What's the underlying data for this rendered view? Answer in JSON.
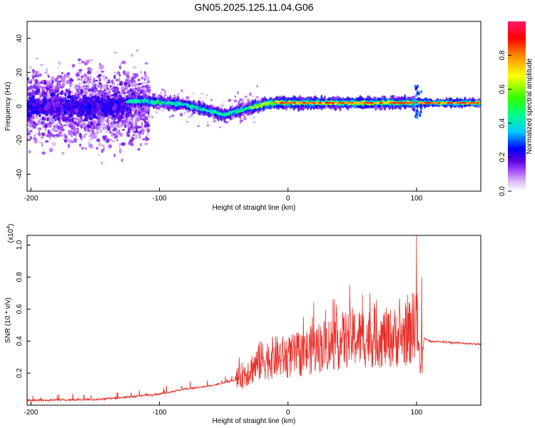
{
  "title": "GN05.2025.125.11.04.G06",
  "chart_data": [
    {
      "type": "heatmap",
      "xlabel": "Height of straight line (km)",
      "ylabel": "Frequency (Hz)",
      "xlim": [
        -203,
        150
      ],
      "ylim": [
        -50,
        50
      ],
      "xticks": [
        -200,
        -100,
        0,
        100
      ],
      "yticks": [
        -40,
        -20,
        0,
        20,
        40
      ],
      "colorbar": {
        "label": "Normalized spectral amplitude",
        "range": [
          0,
          1
        ],
        "ticks": [
          "0.0",
          "0.2",
          "0.4",
          "0.6",
          "0.8"
        ],
        "colors": [
          "#ffffff",
          "#d9b8f5",
          "#a64dff",
          "#5a00e0",
          "#0000ff",
          "#00ccff",
          "#00ff88",
          "#33ff00",
          "#ffff00",
          "#ff8800",
          "#ff0000",
          "#ff1a66"
        ]
      },
      "ridge": {
        "x": [
          -125,
          -110,
          -95,
          -80,
          -65,
          -55,
          -50,
          -45,
          -40,
          -30,
          -20,
          -10,
          0,
          20,
          40,
          60,
          80,
          100,
          120,
          150
        ],
        "frequency": [
          3,
          3,
          2,
          1,
          -2,
          -4,
          -5,
          -4,
          -3,
          -1,
          1,
          2,
          2,
          2,
          2,
          2,
          2,
          2,
          2,
          2
        ]
      },
      "grid": false
    },
    {
      "type": "line",
      "xlabel": "Height of straight line (km)",
      "ylabel": "SNR (10 * v/v)",
      "yscale_label": "(x10",
      "yscale_exp": "4",
      "xlim": [
        -203,
        150
      ],
      "ylim": [
        0,
        1.06
      ],
      "xticks": [
        -200,
        -100,
        0,
        100
      ],
      "yticks": [
        0.2,
        0.4,
        0.6,
        0.8,
        1.0
      ],
      "color": "#e8302a",
      "envelope": {
        "x": [
          -203,
          -150,
          -125,
          -100,
          -80,
          -60,
          -40,
          -30,
          -20,
          -10,
          0,
          10,
          20,
          30,
          40,
          50,
          60,
          70,
          80,
          90,
          95,
          100,
          103,
          106,
          110,
          150
        ],
        "y": [
          0.03,
          0.035,
          0.05,
          0.07,
          0.1,
          0.12,
          0.16,
          0.22,
          0.28,
          0.3,
          0.3,
          0.32,
          0.35,
          0.38,
          0.4,
          0.42,
          0.42,
          0.42,
          0.42,
          0.43,
          0.45,
          0.55,
          0.2,
          0.42,
          0.4,
          0.38
        ]
      },
      "spikes": [
        {
          "x": -122,
          "y": 0.08
        },
        {
          "x": -76,
          "y": 0.15
        },
        {
          "x": -38,
          "y": 0.3
        },
        {
          "x": -22,
          "y": 0.4
        },
        {
          "x": 19,
          "y": 0.55
        },
        {
          "x": 20,
          "y": 0.64
        },
        {
          "x": 35,
          "y": 0.66
        },
        {
          "x": 48,
          "y": 0.75
        },
        {
          "x": 58,
          "y": 0.69
        },
        {
          "x": 64,
          "y": 0.52
        },
        {
          "x": 82,
          "y": 0.5
        },
        {
          "x": 96,
          "y": 0.6
        },
        {
          "x": 100,
          "y": 1.06
        },
        {
          "x": 104,
          "y": 0.8
        }
      ],
      "grid": false
    }
  ]
}
